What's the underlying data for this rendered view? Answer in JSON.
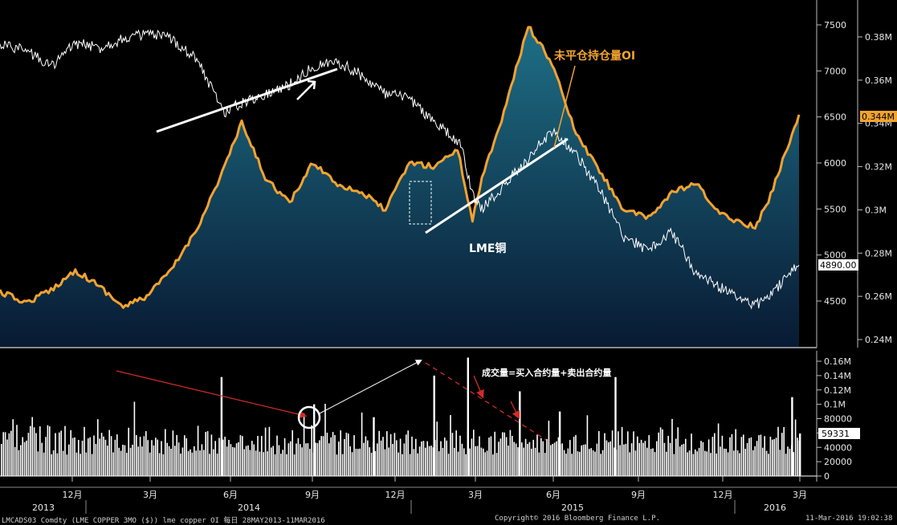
{
  "colors": {
    "background": "#000000",
    "oi_line": "#f2a32e",
    "price_line": "#ffffff",
    "volume_bars": "#ffffff",
    "fill_top": "#1e6f86",
    "fill_bottom": "#081a33",
    "red_annotation": "#d42a2a",
    "divider": "#8a8a8a"
  },
  "annotations": {
    "oi_label": "未平仓持仓量OI",
    "price_label": "LME铜",
    "volume_label": "成交量=买入合约量+卖出合约量"
  },
  "current_values": {
    "oi": "0.344M",
    "price": "4890.00",
    "volume": "59331"
  },
  "footer": {
    "left": "LMCADS03 Comdty (LME COPPER   3MO ($)) lme copper OI  每日 28MAY2013-11MAR2016",
    "center": "Copyright© 2016 Bloomberg Finance L.P.",
    "right": "11-Mar-2016 19:02:38"
  },
  "chart_data": {
    "type": "line",
    "date_range": [
      "2013-05-28",
      "2016-03-11"
    ],
    "x_axis": {
      "months": [
        "12月",
        "3月",
        "6月",
        "9月",
        "12月",
        "3月",
        "6月",
        "9月",
        "12月",
        "3月"
      ],
      "years": [
        "2013",
        "2014",
        "2015",
        "2016"
      ]
    },
    "upper_panel": {
      "left_axis_ticks": [
        "7500",
        "7000",
        "6500",
        "6000",
        "5500",
        "5000",
        "4500"
      ],
      "left_axis_range": [
        4250,
        7750
      ],
      "right_axis_ticks": [
        "0.38M",
        "0.36M",
        "0.34M",
        "0.32M",
        "0.3M",
        "0.28M",
        "0.26M",
        "0.24M"
      ],
      "right_axis_range": [
        0.238,
        0.391
      ],
      "series": [
        {
          "name": "LME铜",
          "axis": "left",
          "points": [
            [
              "2013-05-28",
              7300
            ],
            [
              "2013-07-01",
              7220
            ],
            [
              "2013-08-01",
              7050
            ],
            [
              "2013-09-01",
              7300
            ],
            [
              "2013-10-01",
              7250
            ],
            [
              "2013-11-01",
              7350
            ],
            [
              "2013-12-01",
              7400
            ],
            [
              "2014-01-01",
              7350
            ],
            [
              "2014-02-01",
              7150
            ],
            [
              "2014-03-10",
              6550
            ],
            [
              "2014-04-01",
              6650
            ],
            [
              "2014-05-01",
              6750
            ],
            [
              "2014-06-01",
              6850
            ],
            [
              "2014-07-01",
              7050
            ],
            [
              "2014-08-01",
              7100
            ],
            [
              "2014-09-01",
              6950
            ],
            [
              "2014-10-01",
              6750
            ],
            [
              "2014-11-01",
              6700
            ],
            [
              "2014-12-01",
              6450
            ],
            [
              "2015-01-05",
              6200
            ],
            [
              "2015-01-20",
              5650
            ],
            [
              "2015-02-01",
              5500
            ],
            [
              "2015-03-01",
              5750
            ],
            [
              "2015-04-01",
              6050
            ],
            [
              "2015-05-01",
              6350
            ],
            [
              "2015-06-01",
              6100
            ],
            [
              "2015-07-01",
              5700
            ],
            [
              "2015-08-01",
              5200
            ],
            [
              "2015-09-01",
              5050
            ],
            [
              "2015-10-01",
              5250
            ],
            [
              "2015-11-01",
              4800
            ],
            [
              "2015-12-01",
              4650
            ],
            [
              "2016-01-15",
              4450
            ],
            [
              "2016-02-01",
              4550
            ],
            [
              "2016-03-11",
              4890
            ]
          ]
        },
        {
          "name": "未平仓持仓量OI",
          "axis": "right",
          "points": [
            [
              "2013-05-28",
              0.262
            ],
            [
              "2013-07-01",
              0.257
            ],
            [
              "2013-08-01",
              0.263
            ],
            [
              "2013-09-01",
              0.272
            ],
            [
              "2013-10-01",
              0.265
            ],
            [
              "2013-11-01",
              0.255
            ],
            [
              "2013-12-01",
              0.26
            ],
            [
              "2014-01-01",
              0.272
            ],
            [
              "2014-02-01",
              0.29
            ],
            [
              "2014-03-01",
              0.312
            ],
            [
              "2014-04-01",
              0.34
            ],
            [
              "2014-05-01",
              0.315
            ],
            [
              "2014-06-01",
              0.303
            ],
            [
              "2014-07-01",
              0.322
            ],
            [
              "2014-08-01",
              0.312
            ],
            [
              "2014-09-01",
              0.308
            ],
            [
              "2014-10-01",
              0.3
            ],
            [
              "2014-11-01",
              0.322
            ],
            [
              "2014-12-01",
              0.32
            ],
            [
              "2015-01-01",
              0.328
            ],
            [
              "2015-01-20",
              0.295
            ],
            [
              "2015-02-01",
              0.315
            ],
            [
              "2015-03-01",
              0.345
            ],
            [
              "2015-04-01",
              0.385
            ],
            [
              "2015-05-01",
              0.368
            ],
            [
              "2015-06-01",
              0.335
            ],
            [
              "2015-07-01",
              0.318
            ],
            [
              "2015-08-01",
              0.3
            ],
            [
              "2015-09-01",
              0.296
            ],
            [
              "2015-10-01",
              0.308
            ],
            [
              "2015-11-01",
              0.312
            ],
            [
              "2015-12-01",
              0.298
            ],
            [
              "2016-01-15",
              0.292
            ],
            [
              "2016-02-01",
              0.304
            ],
            [
              "2016-03-11",
              0.344
            ]
          ]
        }
      ]
    },
    "lower_panel": {
      "type": "bar",
      "right_axis_ticks": [
        "0.16M",
        "0.14M",
        "0.12M",
        "0.1M",
        "80000",
        "60000",
        "40000",
        "20000",
        "0"
      ],
      "right_axis_range": [
        0,
        170000
      ],
      "series": [
        {
          "name": "成交量",
          "spikes": [
            [
              "2014-03-05",
              138000
            ],
            [
              "2014-07-01",
              100000
            ],
            [
              "2014-09-15",
              82000
            ],
            [
              "2014-12-01",
              140000
            ],
            [
              "2015-01-13",
              165000
            ],
            [
              "2015-03-20",
              118000
            ],
            [
              "2015-05-10",
              90000
            ],
            [
              "2015-07-20",
              138000
            ],
            [
              "2016-03-01",
              110000
            ],
            [
              "2016-03-11",
              59331
            ]
          ],
          "typical_range": [
            30000,
            70000
          ]
        }
      ]
    }
  }
}
